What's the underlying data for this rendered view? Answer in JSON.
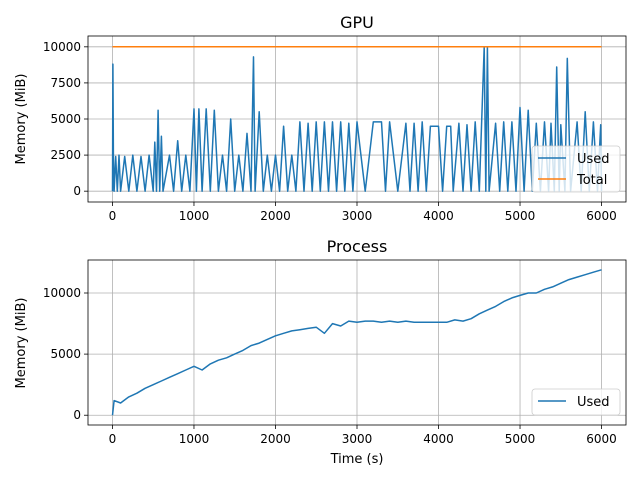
{
  "chart_data": [
    {
      "type": "line",
      "title": "GPU",
      "xlabel": "",
      "ylabel": "Memory (MiB)",
      "xlim": [
        -300,
        6300
      ],
      "ylim": [
        -750,
        10750
      ],
      "xticks": [
        0,
        1000,
        2000,
        3000,
        4000,
        5000,
        6000
      ],
      "yticks": [
        0,
        2500,
        5000,
        7500,
        10000
      ],
      "ytick_labels": [
        "0",
        "2500",
        "5000",
        "7500",
        "10000"
      ],
      "grid": true,
      "legend_position": "lower-right",
      "series": [
        {
          "name": "Used",
          "color": "#1f77b4",
          "points": [
            [
              0,
              0
            ],
            [
              5,
              8800
            ],
            [
              12,
              2500
            ],
            [
              20,
              0
            ],
            [
              40,
              2400
            ],
            [
              60,
              0
            ],
            [
              80,
              2500
            ],
            [
              100,
              0
            ],
            [
              150,
              2400
            ],
            [
              200,
              0
            ],
            [
              250,
              2500
            ],
            [
              300,
              0
            ],
            [
              350,
              2400
            ],
            [
              400,
              0
            ],
            [
              450,
              2500
            ],
            [
              500,
              0
            ],
            [
              520,
              3400
            ],
            [
              540,
              0
            ],
            [
              560,
              5600
            ],
            [
              580,
              0
            ],
            [
              600,
              3800
            ],
            [
              620,
              0
            ],
            [
              700,
              2500
            ],
            [
              750,
              0
            ],
            [
              800,
              3500
            ],
            [
              850,
              0
            ],
            [
              900,
              2500
            ],
            [
              950,
              0
            ],
            [
              1000,
              5700
            ],
            [
              1030,
              0
            ],
            [
              1060,
              5700
            ],
            [
              1100,
              0
            ],
            [
              1150,
              5700
            ],
            [
              1200,
              0
            ],
            [
              1250,
              5600
            ],
            [
              1300,
              0
            ],
            [
              1350,
              2500
            ],
            [
              1400,
              0
            ],
            [
              1450,
              5000
            ],
            [
              1500,
              0
            ],
            [
              1550,
              2500
            ],
            [
              1600,
              0
            ],
            [
              1650,
              4000
            ],
            [
              1700,
              0
            ],
            [
              1730,
              9300
            ],
            [
              1750,
              0
            ],
            [
              1800,
              5500
            ],
            [
              1850,
              0
            ],
            [
              1900,
              2500
            ],
            [
              1950,
              0
            ],
            [
              2000,
              2500
            ],
            [
              2050,
              0
            ],
            [
              2100,
              4500
            ],
            [
              2150,
              0
            ],
            [
              2200,
              2500
            ],
            [
              2250,
              0
            ],
            [
              2300,
              4800
            ],
            [
              2350,
              0
            ],
            [
              2400,
              4700
            ],
            [
              2450,
              0
            ],
            [
              2500,
              4800
            ],
            [
              2550,
              0
            ],
            [
              2600,
              4800
            ],
            [
              2650,
              0
            ],
            [
              2700,
              4800
            ],
            [
              2750,
              0
            ],
            [
              2800,
              4800
            ],
            [
              2850,
              0
            ],
            [
              2900,
              4700
            ],
            [
              2950,
              0
            ],
            [
              3000,
              4800
            ],
            [
              3100,
              0
            ],
            [
              3200,
              4800
            ],
            [
              3300,
              4800
            ],
            [
              3350,
              0
            ],
            [
              3400,
              4800
            ],
            [
              3500,
              0
            ],
            [
              3600,
              4700
            ],
            [
              3650,
              0
            ],
            [
              3700,
              4700
            ],
            [
              3750,
              0
            ],
            [
              3800,
              4800
            ],
            [
              3850,
              0
            ],
            [
              3900,
              4500
            ],
            [
              4000,
              4500
            ],
            [
              4050,
              0
            ],
            [
              4100,
              4500
            ],
            [
              4150,
              4500
            ],
            [
              4180,
              0
            ],
            [
              4250,
              4700
            ],
            [
              4300,
              0
            ],
            [
              4350,
              4600
            ],
            [
              4400,
              0
            ],
            [
              4450,
              4800
            ],
            [
              4500,
              0
            ],
            [
              4560,
              10000
            ],
            [
              4580,
              0
            ],
            [
              4600,
              10000
            ],
            [
              4620,
              0
            ],
            [
              4700,
              4700
            ],
            [
              4750,
              0
            ],
            [
              4800,
              4800
            ],
            [
              4850,
              0
            ],
            [
              4900,
              4800
            ],
            [
              4950,
              0
            ],
            [
              5000,
              5800
            ],
            [
              5050,
              0
            ],
            [
              5100,
              5600
            ],
            [
              5150,
              0
            ],
            [
              5200,
              4700
            ],
            [
              5250,
              0
            ],
            [
              5300,
              4800
            ],
            [
              5350,
              0
            ],
            [
              5380,
              4700
            ],
            [
              5420,
              0
            ],
            [
              5450,
              8600
            ],
            [
              5480,
              0
            ],
            [
              5500,
              4600
            ],
            [
              5550,
              0
            ],
            [
              5580,
              9200
            ],
            [
              5620,
              0
            ],
            [
              5700,
              4800
            ],
            [
              5750,
              0
            ],
            [
              5800,
              5500
            ],
            [
              5850,
              0
            ],
            [
              5900,
              4800
            ],
            [
              5950,
              0
            ],
            [
              5990,
              4600
            ],
            [
              6000,
              0
            ]
          ]
        },
        {
          "name": "Total",
          "color": "#ff7f0e",
          "points": [
            [
              0,
              10000
            ],
            [
              6000,
              10000
            ]
          ]
        }
      ]
    },
    {
      "type": "line",
      "title": "Process",
      "xlabel": "Time (s)",
      "ylabel": "Memory (MiB)",
      "xlim": [
        -300,
        6300
      ],
      "ylim": [
        -800,
        12700
      ],
      "xticks": [
        0,
        1000,
        2000,
        3000,
        4000,
        5000,
        6000
      ],
      "yticks": [
        0,
        5000,
        10000
      ],
      "ytick_labels": [
        "0",
        "5000",
        "10000"
      ],
      "grid": true,
      "legend_position": "lower-right",
      "series": [
        {
          "name": "Used",
          "color": "#1f77b4",
          "points": [
            [
              0,
              0
            ],
            [
              20,
              1200
            ],
            [
              100,
              1000
            ],
            [
              200,
              1500
            ],
            [
              300,
              1800
            ],
            [
              400,
              2200
            ],
            [
              500,
              2500
            ],
            [
              600,
              2800
            ],
            [
              700,
              3100
            ],
            [
              800,
              3400
            ],
            [
              900,
              3700
            ],
            [
              1000,
              4000
            ],
            [
              1100,
              3700
            ],
            [
              1200,
              4200
            ],
            [
              1300,
              4500
            ],
            [
              1400,
              4700
            ],
            [
              1500,
              5000
            ],
            [
              1600,
              5300
            ],
            [
              1700,
              5700
            ],
            [
              1800,
              5900
            ],
            [
              1900,
              6200
            ],
            [
              2000,
              6500
            ],
            [
              2100,
              6700
            ],
            [
              2200,
              6900
            ],
            [
              2300,
              7000
            ],
            [
              2400,
              7100
            ],
            [
              2500,
              7200
            ],
            [
              2600,
              6700
            ],
            [
              2700,
              7500
            ],
            [
              2800,
              7300
            ],
            [
              2900,
              7700
            ],
            [
              3000,
              7600
            ],
            [
              3100,
              7700
            ],
            [
              3200,
              7700
            ],
            [
              3300,
              7600
            ],
            [
              3400,
              7700
            ],
            [
              3500,
              7600
            ],
            [
              3600,
              7700
            ],
            [
              3700,
              7600
            ],
            [
              3800,
              7600
            ],
            [
              3900,
              7600
            ],
            [
              4000,
              7600
            ],
            [
              4100,
              7600
            ],
            [
              4200,
              7800
            ],
            [
              4300,
              7700
            ],
            [
              4400,
              7900
            ],
            [
              4500,
              8300
            ],
            [
              4600,
              8600
            ],
            [
              4700,
              8900
            ],
            [
              4800,
              9300
            ],
            [
              4900,
              9600
            ],
            [
              5000,
              9800
            ],
            [
              5100,
              10000
            ],
            [
              5200,
              10000
            ],
            [
              5300,
              10300
            ],
            [
              5400,
              10500
            ],
            [
              5500,
              10800
            ],
            [
              5600,
              11100
            ],
            [
              5700,
              11300
            ],
            [
              5800,
              11500
            ],
            [
              5900,
              11700
            ],
            [
              6000,
              11900
            ]
          ]
        }
      ]
    }
  ]
}
